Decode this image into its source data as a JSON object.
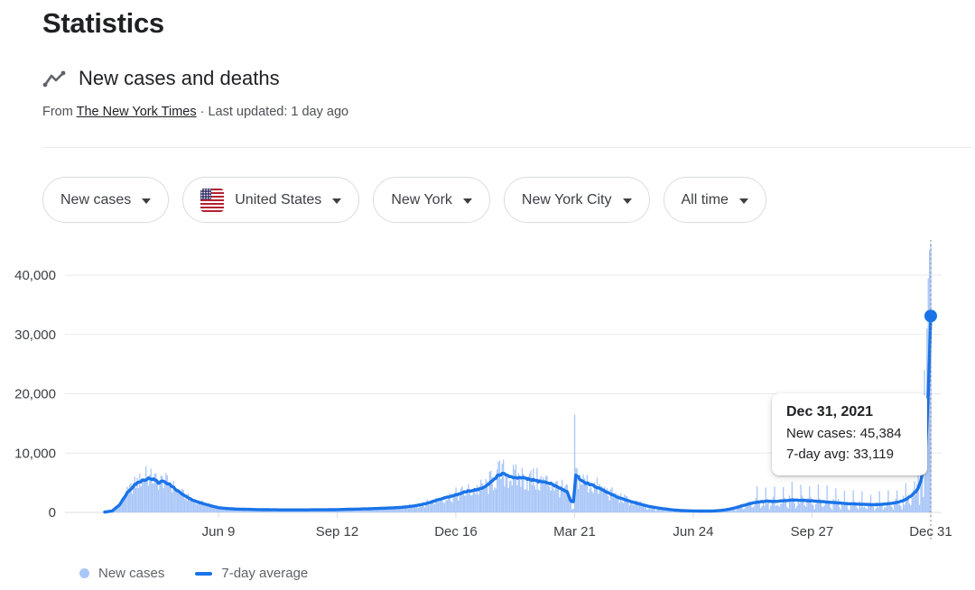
{
  "page": {
    "title": "Statistics"
  },
  "section": {
    "icon": "trend-line-icon",
    "title": "New cases and deaths",
    "source_prefix": "From ",
    "source_link": "The New York Times",
    "source_suffix": " · Last updated: 1 day ago"
  },
  "filters": [
    {
      "label": "New cases",
      "has_flag": false
    },
    {
      "label": "United States",
      "has_flag": true
    },
    {
      "label": "New York",
      "has_flag": false
    },
    {
      "label": "New York City",
      "has_flag": false
    },
    {
      "label": "All time",
      "has_flag": false
    }
  ],
  "tooltip": {
    "title": "Dec 31, 2021",
    "line1": "New cases: 45,384",
    "line2": "7-day avg: 33,119"
  },
  "legend": [
    {
      "label": "New cases",
      "swatch": "dot",
      "color": "#a9c6f8"
    },
    {
      "label": "7-day average",
      "swatch": "line",
      "color": "#1a73e8"
    }
  ],
  "colors": {
    "bar": "#a9c6f8",
    "line": "#1a73e8",
    "grid": "#e8eaed",
    "axis": "#dadce0",
    "tick_text": "#3c4043",
    "secondary_text": "#5f6368"
  },
  "chart_data": {
    "type": "bar",
    "note": "daily new-case bars with 7-day average line; x domain is days since Mar 10 2020",
    "title": "New cases and deaths",
    "xlabel": "",
    "ylabel": "",
    "ylim": [
      0,
      46000
    ],
    "y_ticks": [
      0,
      10000,
      20000,
      30000,
      40000
    ],
    "x_ticks": [
      {
        "label": "Jun 9",
        "day": 91
      },
      {
        "label": "Sep 12",
        "day": 186
      },
      {
        "label": "Dec 16",
        "day": 281
      },
      {
        "label": "Mar 21",
        "day": 376
      },
      {
        "label": "Jun 24",
        "day": 471
      },
      {
        "label": "Sep 27",
        "day": 566
      },
      {
        "label": "Dec 31",
        "day": 661
      }
    ],
    "series": [
      {
        "name": "New cases",
        "type": "bar",
        "color": "#a9c6f8",
        "spikes": {
          "33": 7800,
          "374": 500,
          "375": 600,
          "376": 16500,
          "648": 5200,
          "651": 8200,
          "653": 11000,
          "655": 2600,
          "656": 24000,
          "658": 31000,
          "659": 39500,
          "660": 44200,
          "661": 45384
        }
      },
      {
        "name": "7-day average",
        "type": "line",
        "color": "#1a73e8",
        "points": [
          [
            0,
            60
          ],
          [
            6,
            250
          ],
          [
            12,
            1300
          ],
          [
            18,
            3300
          ],
          [
            24,
            4700
          ],
          [
            30,
            5400
          ],
          [
            36,
            5750
          ],
          [
            40,
            5500
          ],
          [
            43,
            5000
          ],
          [
            47,
            5300
          ],
          [
            52,
            4700
          ],
          [
            58,
            3700
          ],
          [
            64,
            2800
          ],
          [
            70,
            2100
          ],
          [
            76,
            1650
          ],
          [
            82,
            1300
          ],
          [
            88,
            950
          ],
          [
            91,
            800
          ],
          [
            98,
            650
          ],
          [
            106,
            560
          ],
          [
            114,
            520
          ],
          [
            122,
            480
          ],
          [
            130,
            450
          ],
          [
            140,
            430
          ],
          [
            150,
            420
          ],
          [
            160,
            430
          ],
          [
            170,
            440
          ],
          [
            180,
            450
          ],
          [
            186,
            470
          ],
          [
            194,
            520
          ],
          [
            202,
            560
          ],
          [
            210,
            600
          ],
          [
            218,
            660
          ],
          [
            226,
            730
          ],
          [
            234,
            810
          ],
          [
            240,
            900
          ],
          [
            246,
            1050
          ],
          [
            252,
            1250
          ],
          [
            258,
            1550
          ],
          [
            264,
            1950
          ],
          [
            270,
            2350
          ],
          [
            276,
            2650
          ],
          [
            281,
            2950
          ],
          [
            286,
            3250
          ],
          [
            290,
            3550
          ],
          [
            295,
            3750
          ],
          [
            300,
            3950
          ],
          [
            305,
            4350
          ],
          [
            310,
            5300
          ],
          [
            315,
            6300
          ],
          [
            318,
            6500
          ],
          [
            322,
            6300
          ],
          [
            326,
            5900
          ],
          [
            330,
            5700
          ],
          [
            334,
            5900
          ],
          [
            338,
            5600
          ],
          [
            342,
            5500
          ],
          [
            346,
            5300
          ],
          [
            350,
            5200
          ],
          [
            354,
            5000
          ],
          [
            358,
            4800
          ],
          [
            362,
            4300
          ],
          [
            366,
            3900
          ],
          [
            370,
            3500
          ],
          [
            373,
            1900
          ],
          [
            375,
            1800
          ],
          [
            377,
            6300
          ],
          [
            379,
            6000
          ],
          [
            381,
            5400
          ],
          [
            383,
            5100
          ],
          [
            386,
            4900
          ],
          [
            390,
            4600
          ],
          [
            394,
            4200
          ],
          [
            398,
            3800
          ],
          [
            402,
            3400
          ],
          [
            406,
            3000
          ],
          [
            410,
            2600
          ],
          [
            415,
            2250
          ],
          [
            420,
            1900
          ],
          [
            425,
            1600
          ],
          [
            430,
            1300
          ],
          [
            435,
            1050
          ],
          [
            440,
            850
          ],
          [
            445,
            680
          ],
          [
            450,
            540
          ],
          [
            455,
            420
          ],
          [
            460,
            330
          ],
          [
            465,
            280
          ],
          [
            471,
            250
          ],
          [
            476,
            230
          ],
          [
            480,
            220
          ],
          [
            485,
            230
          ],
          [
            490,
            280
          ],
          [
            495,
            380
          ],
          [
            500,
            550
          ],
          [
            505,
            800
          ],
          [
            510,
            1100
          ],
          [
            515,
            1400
          ],
          [
            520,
            1650
          ],
          [
            525,
            1800
          ],
          [
            530,
            1900
          ],
          [
            535,
            1850
          ],
          [
            540,
            1900
          ],
          [
            545,
            2000
          ],
          [
            550,
            2100
          ],
          [
            555,
            2050
          ],
          [
            560,
            2000
          ],
          [
            566,
            1950
          ],
          [
            572,
            1850
          ],
          [
            578,
            1750
          ],
          [
            584,
            1650
          ],
          [
            590,
            1550
          ],
          [
            596,
            1450
          ],
          [
            602,
            1400
          ],
          [
            608,
            1350
          ],
          [
            614,
            1300
          ],
          [
            620,
            1350
          ],
          [
            626,
            1450
          ],
          [
            632,
            1600
          ],
          [
            638,
            1900
          ],
          [
            642,
            2300
          ],
          [
            646,
            2900
          ],
          [
            650,
            3700
          ],
          [
            653,
            5200
          ],
          [
            655,
            7200
          ],
          [
            657,
            11000
          ],
          [
            658,
            15000
          ],
          [
            659,
            20000
          ],
          [
            660,
            26500
          ],
          [
            661,
            33119
          ]
        ]
      }
    ],
    "highlight": {
      "day": 661,
      "date": "Dec 31, 2021",
      "new_cases": 45384,
      "seven_day_avg": 33119
    }
  }
}
